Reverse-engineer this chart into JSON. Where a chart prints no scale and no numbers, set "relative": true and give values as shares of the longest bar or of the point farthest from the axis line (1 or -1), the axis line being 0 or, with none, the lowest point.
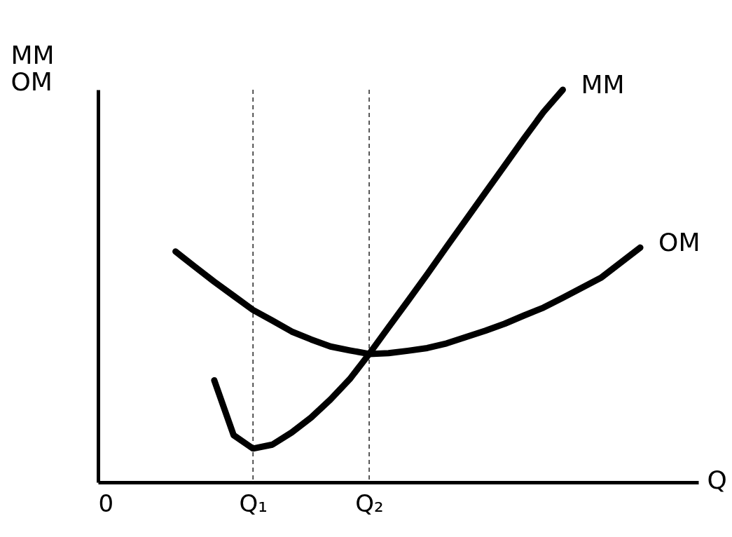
{
  "chart_data": {
    "type": "line",
    "relative": true,
    "xlabel": "Q",
    "ylabel": "MM\nOM",
    "categories": [
      "0",
      null,
      null,
      null,
      null,
      null,
      null,
      null,
      "Q₁",
      null,
      null,
      null,
      null,
      null,
      "Q₂",
      null,
      null,
      null,
      null,
      null,
      null,
      null,
      null,
      null,
      null,
      null,
      null,
      null,
      null,
      null,
      null,
      null
    ],
    "series": [
      {
        "name": "MM",
        "color": "#000000",
        "values": [
          null,
          null,
          null,
          null,
          null,
          null,
          0.26,
          0.12,
          0.086,
          0.096,
          0.127,
          0.165,
          0.211,
          0.263,
          0.327,
          0.395,
          0.462,
          0.53,
          0.6,
          0.669,
          0.738,
          0.807,
          0.876,
          0.943,
          1,
          null,
          null,
          null,
          null,
          null,
          null,
          null
        ]
      },
      {
        "name": "OM",
        "color": "#000000",
        "values": [
          null,
          null,
          null,
          null,
          0.588,
          0.549,
          0.511,
          0.475,
          0.439,
          0.412,
          0.384,
          0.364,
          0.346,
          0.336,
          0.327,
          0.329,
          0.335,
          0.342,
          0.354,
          0.37,
          0.386,
          0.404,
          0.425,
          0.445,
          0.47,
          0.496,
          0.522,
          0.56,
          0.598,
          null,
          null,
          null
        ]
      }
    ],
    "ref_lines": [
      {
        "axis": "x",
        "value": "Q₁",
        "color": "#000000",
        "line_style": "dashed"
      },
      {
        "axis": "x",
        "value": "Q₂",
        "color": "#000000",
        "line_style": "dashed"
      }
    ],
    "grid": false,
    "legend": false,
    "marker": "none",
    "line_style": "solid"
  }
}
